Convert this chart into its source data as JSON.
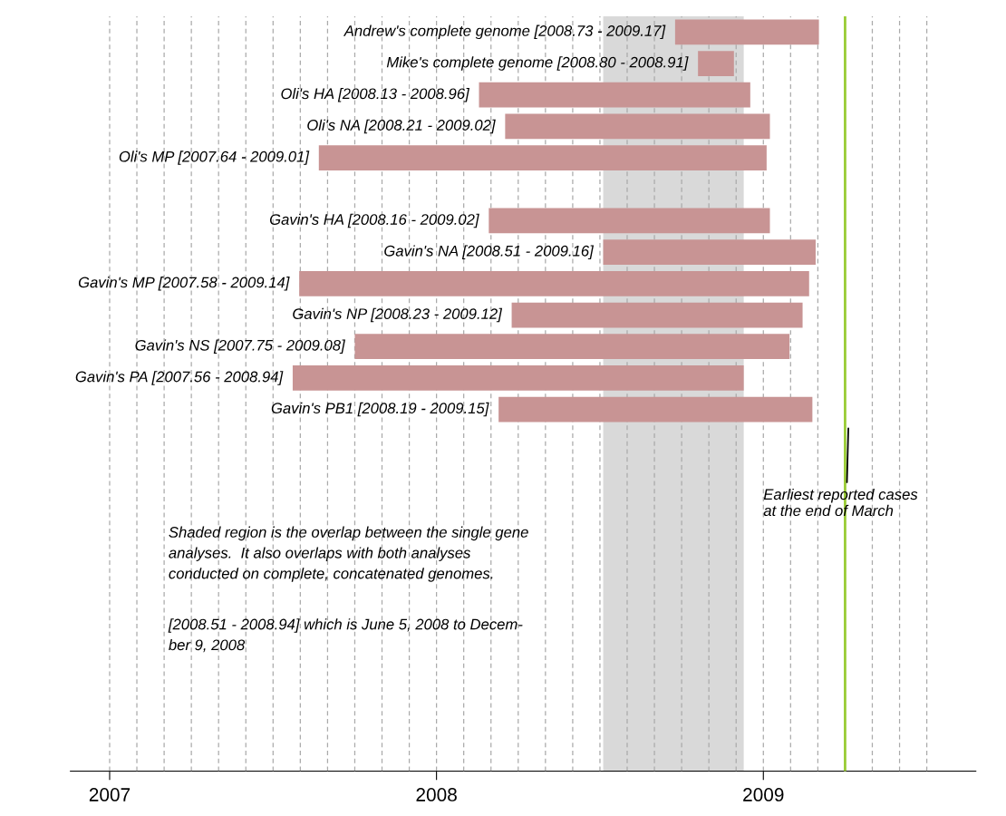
{
  "chart_data": {
    "type": "bar",
    "orientation": "horizontal",
    "categories": [
      null,
      null,
      null,
      null,
      null,
      null,
      null,
      null,
      null,
      null,
      null,
      null,
      null,
      null,
      null,
      null,
      null,
      null,
      null,
      null,
      null,
      null,
      null,
      null
    ],
    "value_labels": [
      "Andrew's complete genome [2008.73 - 2009.17]",
      "Mike's complete genome [2008.80 - 2008.91]",
      "Oli's HA [2008.13 - 2008.96]",
      "Oli's NA [2008.21 - 2009.02]",
      "Oli's MP [2007.64 - 2009.01]",
      null,
      "Gavin's HA [2008.16 - 2009.02]",
      "Gavin's NA [2008.51 - 2009.16]",
      "Gavin's MP [2007.58 - 2009.14]",
      "Gavin's NP [2008.23 - 2009.12]",
      "Gavin's NS [2007.75 - 2009.08]",
      "Gavin's PA [2007.56 - 2008.94]",
      "Gavin's PB1 [2008.19 - 2009.15]",
      null,
      null,
      null,
      null,
      null,
      null,
      null,
      null,
      null,
      null,
      null
    ],
    "base": [
      2008.73,
      2008.8,
      2008.13,
      2008.21,
      2007.64,
      null,
      2008.16,
      2008.51,
      2007.58,
      2008.23,
      2007.75,
      2007.56,
      2008.19,
      null,
      null,
      null,
      null,
      null,
      null,
      null,
      null,
      null,
      null,
      null
    ],
    "values": [
      0.44,
      0.11,
      0.83,
      0.81,
      1.37,
      null,
      0.86,
      0.65,
      1.56,
      0.89,
      1.33,
      1.38,
      0.96,
      null,
      null,
      null,
      null,
      null,
      null,
      null,
      null,
      null,
      null,
      null
    ],
    "color": "#c89494",
    "xlim": [
      2006.88,
      2009.65
    ],
    "xticks": [
      2007,
      {
        "value": 2007.0833,
        "label": null
      },
      {
        "value": 2007.1667,
        "label": null
      },
      {
        "value": 2007.25,
        "label": null
      },
      {
        "value": 2007.3333,
        "label": null
      },
      {
        "value": 2007.4167,
        "label": null
      },
      {
        "value": 2007.5,
        "label": null
      },
      {
        "value": 2007.5833,
        "label": null
      },
      {
        "value": 2007.6667,
        "label": null
      },
      {
        "value": 2007.75,
        "label": null
      },
      {
        "value": 2007.8333,
        "label": null
      },
      {
        "value": 2007.9167,
        "label": null
      },
      2008,
      {
        "value": 2008.0833,
        "label": null
      },
      {
        "value": 2008.1667,
        "label": null
      },
      {
        "value": 2008.25,
        "label": null
      },
      {
        "value": 2008.3333,
        "label": null
      },
      {
        "value": 2008.4167,
        "label": null
      },
      {
        "value": 2008.5,
        "label": null
      },
      {
        "value": 2008.5833,
        "label": null
      },
      {
        "value": 2008.6667,
        "label": null
      },
      {
        "value": 2008.75,
        "label": null
      },
      {
        "value": 2008.8333,
        "label": null
      },
      {
        "value": 2008.9167,
        "label": null
      },
      2009,
      {
        "value": 2009.0833,
        "label": null
      },
      {
        "value": 2009.1667,
        "label": null
      },
      {
        "value": 2009.25,
        "label": null
      },
      {
        "value": 2009.3333,
        "label": null
      },
      {
        "value": 2009.4167,
        "label": null
      },
      {
        "value": 2009.5,
        "label": null
      }
    ],
    "grid": "x",
    "bands": [
      {
        "axis": "x",
        "from": 2008.51,
        "to": 2008.94,
        "color": "#d9d9d9"
      }
    ],
    "ref_lines": [
      {
        "axis": "x",
        "value": 2009.25,
        "label": "Earliest reported cases\nat the end of March",
        "color": "#99cc33"
      }
    ],
    "annotations": [
      "Shaded region is the overlap between the single gene\nanalyses.  It also overlaps with both analyses\nconducted on complete, concatenated genomes.",
      "[2008.51 - 2008.94] which is June 5, 2008 to Decem-\nber 9, 2008"
    ]
  }
}
